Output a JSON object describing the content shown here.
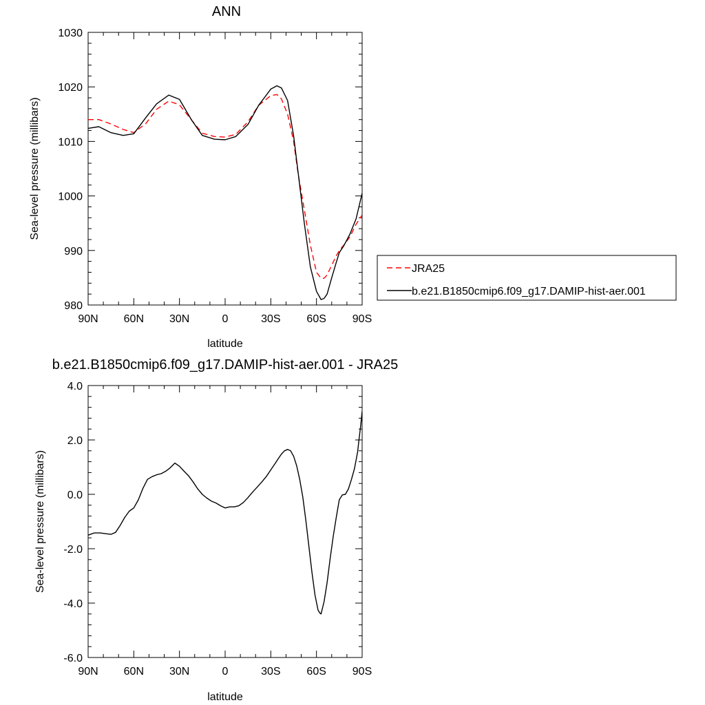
{
  "chart_data": [
    {
      "type": "line",
      "title": "ANN",
      "xlabel": "latitude",
      "ylabel": "Sea-level pressure (millibars)",
      "xlim": [
        -90,
        90
      ],
      "ylim": [
        980,
        1030
      ],
      "xticks": [
        {
          "value": -90,
          "label": "90N"
        },
        {
          "value": -60,
          "label": "60N"
        },
        {
          "value": -30,
          "label": "30N"
        },
        {
          "value": 0,
          "label": "0"
        },
        {
          "value": 30,
          "label": "30S"
        },
        {
          "value": 60,
          "label": "60S"
        },
        {
          "value": 90,
          "label": "90S"
        }
      ],
      "yticks": [
        {
          "value": 980,
          "label": "980"
        },
        {
          "value": 990,
          "label": "990"
        },
        {
          "value": 1000,
          "label": "1000"
        },
        {
          "value": 1010,
          "label": "1010"
        },
        {
          "value": 1020,
          "label": "1020"
        },
        {
          "value": 1030,
          "label": "1030"
        }
      ],
      "legend": "right",
      "grid": false,
      "series": [
        {
          "name": "JRA25",
          "color": "#ff0000",
          "dash": "dashed",
          "x": [
            -90,
            -83,
            -75,
            -67,
            -60,
            -52,
            -45,
            -37,
            -30,
            -22,
            -15,
            -7,
            0,
            7,
            15,
            22,
            30,
            34,
            37,
            41,
            45,
            48,
            52,
            56,
            60,
            63,
            65,
            67,
            70,
            73,
            75,
            78,
            82,
            86,
            90
          ],
          "y": [
            1014.0,
            1014.0,
            1013.2,
            1012.2,
            1011.6,
            1013.3,
            1015.9,
            1017.4,
            1016.7,
            1013.9,
            1011.5,
            1010.9,
            1010.8,
            1011.3,
            1013.6,
            1016.6,
            1018.4,
            1018.6,
            1017.8,
            1015.0,
            1010.0,
            1004.0,
            997.5,
            991.0,
            986.0,
            984.9,
            984.9,
            985.5,
            987.3,
            989.0,
            990.0,
            991.0,
            992.5,
            994.8,
            996.5
          ]
        },
        {
          "name": "b.e21.B1850cmip6.f09_g17.DAMIP-hist-aer.001",
          "color": "#000000",
          "dash": "solid",
          "x": [
            -90,
            -83,
            -75,
            -67,
            -60,
            -52,
            -45,
            -37,
            -30,
            -22,
            -15,
            -7,
            0,
            7,
            15,
            22,
            30,
            34,
            37,
            41,
            45,
            48,
            52,
            56,
            60,
            63,
            65,
            67,
            70,
            73,
            75,
            78,
            82,
            86,
            90
          ],
          "y": [
            1012.4,
            1012.7,
            1011.6,
            1011.1,
            1011.4,
            1014.4,
            1016.9,
            1018.5,
            1017.7,
            1013.9,
            1011.1,
            1010.4,
            1010.3,
            1010.9,
            1013.1,
            1016.6,
            1019.6,
            1020.2,
            1019.8,
            1017.5,
            1011.0,
            1004.2,
            995.0,
            987.0,
            982.5,
            981.0,
            981.2,
            982.0,
            985.0,
            987.8,
            989.6,
            990.9,
            993.0,
            995.8,
            1000.5
          ]
        }
      ]
    },
    {
      "type": "line",
      "title": "b.e21.B1850cmip6.f09_g17.DAMIP-hist-aer.001 - JRA25",
      "xlabel": "latitude",
      "ylabel": "Sea-level pressure (millibars)",
      "xlim": [
        -90,
        90
      ],
      "ylim": [
        -6,
        4
      ],
      "xticks": [
        {
          "value": -90,
          "label": "90N"
        },
        {
          "value": -60,
          "label": "60N"
        },
        {
          "value": -30,
          "label": "30N"
        },
        {
          "value": 0,
          "label": "0"
        },
        {
          "value": 30,
          "label": "30S"
        },
        {
          "value": 60,
          "label": "60S"
        },
        {
          "value": 90,
          "label": "90S"
        }
      ],
      "yticks": [
        {
          "value": -6,
          "label": "-6.0"
        },
        {
          "value": -4,
          "label": "-4.0"
        },
        {
          "value": -2,
          "label": "-2.0"
        },
        {
          "value": 0,
          "label": "0.0"
        },
        {
          "value": 2,
          "label": "2.0"
        },
        {
          "value": 4,
          "label": "4.0"
        }
      ],
      "grid": false,
      "series": [
        {
          "color": "#000000",
          "dash": "solid",
          "x": [
            -90,
            -86,
            -82,
            -78,
            -75,
            -72,
            -69,
            -66,
            -63,
            -60,
            -57,
            -54,
            -51,
            -48,
            -45,
            -42,
            -39,
            -36,
            -33,
            -30,
            -27,
            -24,
            -21,
            -18,
            -15,
            -12,
            -9,
            -6,
            -3,
            0,
            3,
            6,
            9,
            12,
            15,
            18,
            21,
            24,
            27,
            30,
            33,
            35,
            37,
            39,
            41,
            43,
            45,
            47,
            49,
            51,
            53,
            55,
            57,
            59,
            61,
            62,
            63,
            65,
            67,
            69,
            71,
            73,
            75,
            77,
            79,
            81,
            83,
            85,
            87,
            88,
            89,
            90
          ],
          "y": [
            -1.5,
            -1.42,
            -1.42,
            -1.45,
            -1.47,
            -1.4,
            -1.15,
            -0.85,
            -0.62,
            -0.5,
            -0.2,
            0.22,
            0.55,
            0.65,
            0.72,
            0.76,
            0.85,
            0.98,
            1.15,
            1.03,
            0.85,
            0.68,
            0.45,
            0.2,
            0.0,
            -0.14,
            -0.25,
            -0.32,
            -0.42,
            -0.5,
            -0.46,
            -0.46,
            -0.42,
            -0.3,
            -0.12,
            0.08,
            0.26,
            0.45,
            0.65,
            0.9,
            1.15,
            1.32,
            1.48,
            1.6,
            1.65,
            1.6,
            1.4,
            1.05,
            0.55,
            -0.1,
            -0.95,
            -1.9,
            -2.85,
            -3.7,
            -4.25,
            -4.35,
            -4.4,
            -3.95,
            -3.25,
            -2.35,
            -1.55,
            -0.85,
            -0.2,
            -0.02,
            0.0,
            0.2,
            0.55,
            0.95,
            1.55,
            2.05,
            2.5,
            3.05
          ]
        }
      ]
    }
  ]
}
